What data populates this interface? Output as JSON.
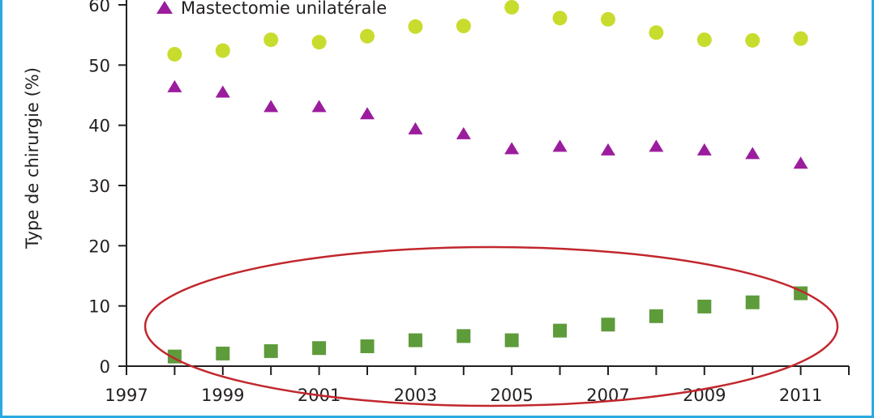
{
  "chart_data": {
    "type": "scatter",
    "title": "",
    "xlabel": "",
    "ylabel": "Type de chirurgie (%)",
    "xlim": [
      1997,
      2012
    ],
    "ylim": [
      0,
      60
    ],
    "x_ticks": [
      1997,
      1999,
      2001,
      2003,
      2005,
      2007,
      2009,
      2011
    ],
    "y_ticks": [
      0,
      10,
      20,
      30,
      40,
      50,
      60
    ],
    "grid": false,
    "legend_visible_entries": [
      "Mastectomie unilatérale"
    ],
    "annotations": [
      "red ellipse highlighting the green square series"
    ],
    "series": [
      {
        "name": "",
        "marker": "circle",
        "color": "#c8dc2e",
        "x": [
          1998,
          1999,
          2000,
          2001,
          2002,
          2003,
          2004,
          2005,
          2006,
          2007,
          2008,
          2009,
          2010,
          2011
        ],
        "values": [
          51.8,
          52.4,
          54.2,
          53.8,
          54.8,
          56.4,
          56.5,
          59.6,
          57.8,
          57.6,
          55.4,
          54.2,
          54.1,
          54.4
        ]
      },
      {
        "name": "Mastectomie unilatérale",
        "marker": "triangle",
        "color": "#9b1d9e",
        "x": [
          1998,
          1999,
          2000,
          2001,
          2002,
          2003,
          2004,
          2005,
          2006,
          2007,
          2008,
          2009,
          2010,
          2011
        ],
        "values": [
          46.3,
          45.4,
          43.0,
          43.0,
          41.8,
          39.3,
          38.5,
          36.0,
          36.4,
          35.8,
          36.4,
          35.8,
          35.2,
          33.6
        ]
      },
      {
        "name": "",
        "marker": "square",
        "color": "#5e9b3b",
        "x": [
          1998,
          1999,
          2000,
          2001,
          2002,
          2003,
          2004,
          2005,
          2006,
          2007,
          2008,
          2009,
          2010,
          2011
        ],
        "values": [
          1.6,
          2.1,
          2.5,
          3.0,
          3.3,
          4.3,
          5.0,
          4.3,
          5.9,
          6.9,
          8.3,
          9.9,
          10.6,
          12.1
        ]
      }
    ],
    "colors": {
      "axis": "#231f20",
      "highlight": "#c1272d",
      "frame": "#2aa9e0"
    }
  }
}
